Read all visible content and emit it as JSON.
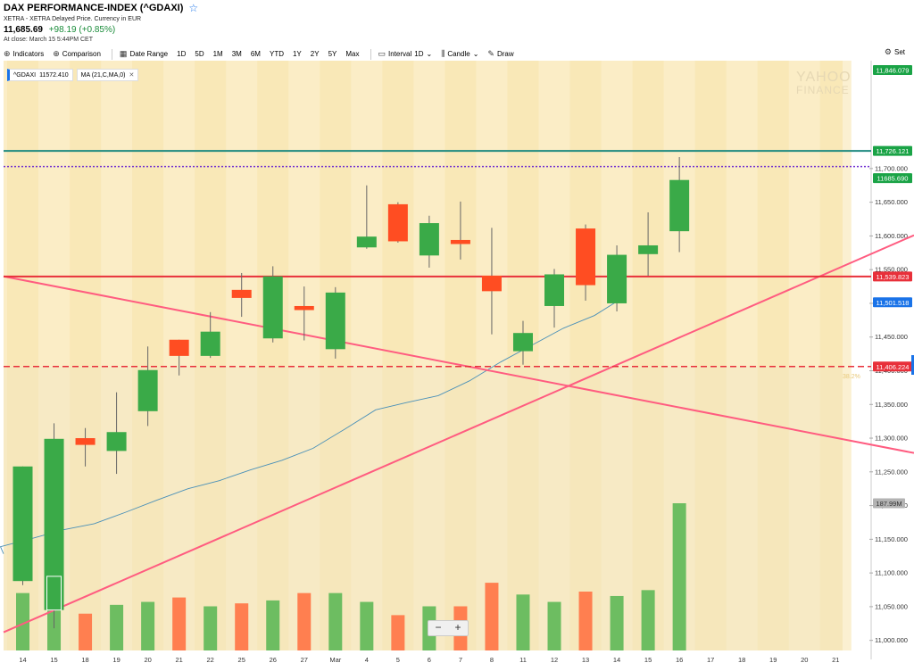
{
  "header": {
    "title": "DAX PERFORMANCE-INDEX (^GDAXI)",
    "subtitle": "XETRA - XETRA Delayed Price. Currency in EUR",
    "price": "11,685.69",
    "change": "+98.19 (+0.85%)",
    "close_note": "At close: March 15 5:44PM CET"
  },
  "toolbar": {
    "indicators": "Indicators",
    "comparison": "Comparison",
    "date_range": "Date Range",
    "ranges": [
      "1D",
      "5D",
      "1M",
      "3M",
      "6M",
      "YTD",
      "1Y",
      "2Y",
      "5Y",
      "Max"
    ],
    "interval": "Interval",
    "interval_value": "1D",
    "candle": "Candle",
    "draw": "Draw",
    "settings": "Set"
  },
  "legend": {
    "main": "^GDAXI",
    "main_value": "11572.410",
    "ma": "MA (21,C,MA,0)"
  },
  "watermark": {
    "line1": "YAHOO",
    "line2": "FINANCE"
  },
  "zoom": {
    "minus": "−",
    "plus": "+"
  },
  "colors": {
    "up": "#3aaa48",
    "down": "#ff4d22",
    "vol_up": "#6dbd61",
    "vol_down": "#ff7f50",
    "bg_light": "#fbedc6",
    "bg_dark": "#f7e3ac",
    "trend": "#ff5c80",
    "red_line": "#e8303a",
    "teal_line": "#1f8a80",
    "purple_line": "#6e2bd0",
    "ma_line": "#4a90b8"
  },
  "chart_data": {
    "type": "candlestick",
    "ylim": [
      10985,
      11860
    ],
    "yticks": [
      11000,
      11050,
      11100,
      11150,
      11200,
      11250,
      11300,
      11350,
      11400,
      11450,
      11500,
      11550,
      11600,
      11650,
      11700
    ],
    "ytick_labels": [
      "11,000.000",
      "11,050.000",
      "11,100.000",
      "11,150.000",
      "11,200.000",
      "11,250.000",
      "11,300.000",
      "11,350.000",
      "11,400.000",
      "11,450.000",
      "11,500.000",
      "11,550.000",
      "11,600.000",
      "11,650.000",
      "11,700.000"
    ],
    "x_labels": [
      "14",
      "15",
      "18",
      "19",
      "20",
      "21",
      "22",
      "25",
      "26",
      "27",
      "Mar",
      "4",
      "5",
      "6",
      "7",
      "8",
      "11",
      "12",
      "13",
      "14",
      "15",
      "16",
      "17",
      "18",
      "19",
      "20",
      "21"
    ],
    "candles": [
      {
        "o": 11088,
        "h": 11258,
        "l": 11082,
        "c": 11258
      },
      {
        "o": 11045,
        "h": 11322,
        "l": 11018,
        "c": 11299
      },
      {
        "o": 11300,
        "h": 11315,
        "l": 11258,
        "c": 11290
      },
      {
        "o": 11281,
        "h": 11368,
        "l": 11247,
        "c": 11309
      },
      {
        "o": 11340,
        "h": 11436,
        "l": 11318,
        "c": 11401
      },
      {
        "o": 11446,
        "h": 11446,
        "l": 11393,
        "c": 11422
      },
      {
        "o": 11422,
        "h": 11487,
        "l": 11419,
        "c": 11458
      },
      {
        "o": 11520,
        "h": 11545,
        "l": 11480,
        "c": 11508
      },
      {
        "o": 11448,
        "h": 11555,
        "l": 11442,
        "c": 11540
      },
      {
        "o": 11496,
        "h": 11525,
        "l": 11445,
        "c": 11490
      },
      {
        "o": 11432,
        "h": 11524,
        "l": 11418,
        "c": 11516
      },
      {
        "o": 11583,
        "h": 11675,
        "l": 11581,
        "c": 11599
      },
      {
        "o": 11647,
        "h": 11650,
        "l": 11590,
        "c": 11592
      },
      {
        "o": 11571,
        "h": 11630,
        "l": 11553,
        "c": 11619
      },
      {
        "o": 11594,
        "h": 11651,
        "l": 11565,
        "c": 11588
      },
      {
        "o": 11541,
        "h": 11612,
        "l": 11454,
        "c": 11518
      },
      {
        "o": 11429,
        "h": 11474,
        "l": 11409,
        "c": 11456
      },
      {
        "o": 11496,
        "h": 11551,
        "l": 11464,
        "c": 11543
      },
      {
        "o": 11611,
        "h": 11617,
        "l": 11504,
        "c": 11527
      },
      {
        "o": 11500,
        "h": 11586,
        "l": 11488,
        "c": 11572
      },
      {
        "o": 11573,
        "h": 11635,
        "l": 11541,
        "c": 11586
      },
      {
        "o": 11607,
        "h": 11717,
        "l": 11576,
        "c": 11683
      }
    ],
    "volume_label": "187.99M",
    "volume_heights": [
      0.39,
      0.43,
      0.25,
      0.31,
      0.33,
      0.36,
      0.3,
      0.32,
      0.34,
      0.39,
      0.39,
      0.33,
      0.24,
      0.3,
      0.3,
      0.46,
      0.38,
      0.33,
      0.4,
      0.37,
      0.41,
      1.0
    ],
    "ma": [
      11139,
      11151,
      11164,
      11173,
      11190,
      11208,
      11225,
      11237,
      11253,
      11267,
      11285,
      11313,
      11342,
      11353,
      11363,
      11385,
      11413,
      11438,
      11463,
      11482,
      11511
    ],
    "price_tags": [
      {
        "value": 11846.079,
        "label": "11,846.079",
        "color": "#1aa346"
      },
      {
        "value": 11726.121,
        "label": "11,726.121",
        "color": "#1aa346"
      },
      {
        "value": 11685.69,
        "label": "11685.690",
        "color": "#1aa346"
      },
      {
        "value": 11539.823,
        "label": "11,539.823",
        "color": "#e8303a"
      },
      {
        "value": 11501.518,
        "label": "11,501.518",
        "color": "#1a73e8"
      },
      {
        "value": 11406.224,
        "label": "11,406.224",
        "color": "#e8303a"
      }
    ],
    "fib_label": "38.2%"
  }
}
